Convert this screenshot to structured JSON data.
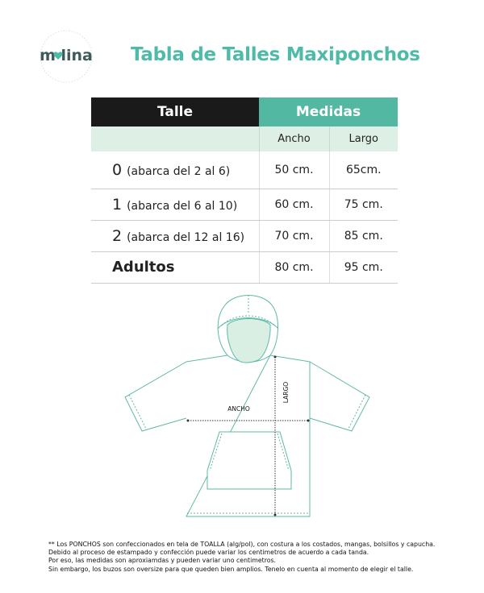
{
  "brand": {
    "logo_text": "molina",
    "accent": "#52b8a1",
    "dark": "#1a1a1a",
    "light": "#def0e6"
  },
  "title": "Tabla de Talles Maxiponchos",
  "table": {
    "header_talle": "Talle",
    "header_medidas": "Medidas",
    "sub_ancho": "Ancho",
    "sub_largo": "Largo",
    "rows": [
      {
        "size": "0",
        "range": "(abarca del 2 al 6)",
        "ancho": "50 cm.",
        "largo": "65cm."
      },
      {
        "size": "1",
        "range": "(abarca del 6 al 10)",
        "ancho": "60 cm.",
        "largo": "75 cm."
      },
      {
        "size": "2",
        "range": "(abarca del 12 al 16)",
        "ancho": "70 cm.",
        "largo": "85 cm."
      },
      {
        "size": "Adultos",
        "range": "",
        "ancho": "80 cm.",
        "largo": "95 cm."
      }
    ]
  },
  "diagram": {
    "ancho_label": "ANCHO",
    "largo_label": "LARGO"
  },
  "notes": [
    "** Los PONCHOS son confeccionados en tela de TOALLA (alg/pol), con costura a los costados, mangas, bolsillos y capucha.",
    "Debido al proceso de estampado y confección puede variar los centimetros de acuerdo a cada tanda.",
    "Por eso, las medidas son aproxiamdas y pueden variar uno centimetros.",
    "Sin embargo, los buzos son oversize para que queden bien amplios. Tenelo en cuenta al momento de elegir el talle."
  ]
}
